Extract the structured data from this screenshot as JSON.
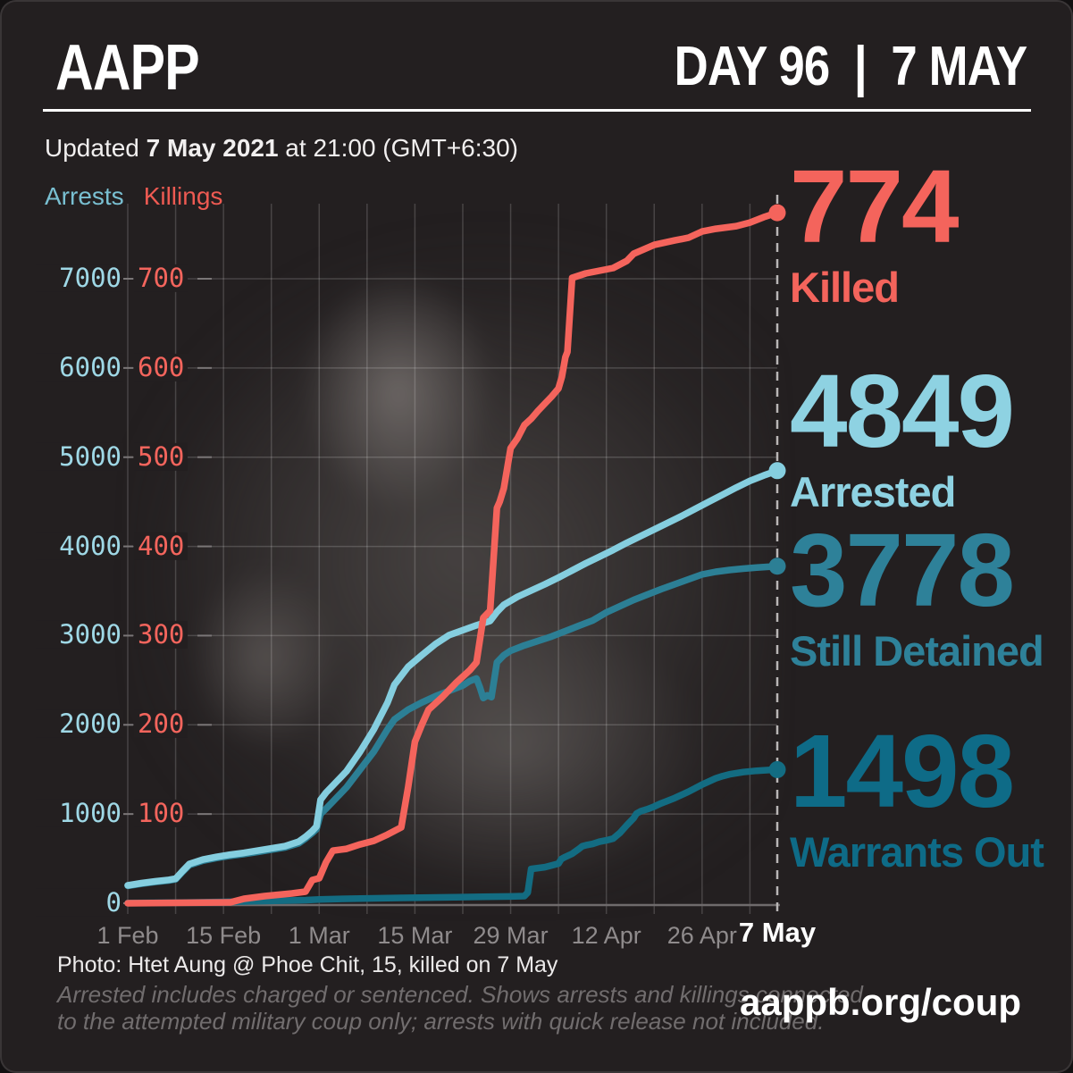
{
  "header": {
    "logo": "AAPP",
    "day_label": "DAY 96  |  7 MAY"
  },
  "updated": {
    "prefix": "Updated ",
    "date": "7 May 2021",
    "suffix": " at 21:00 (GMT+6:30)"
  },
  "stats": [
    {
      "value": "774",
      "label": "Killed",
      "color": "#f4645c"
    },
    {
      "value": "4849",
      "label": "Arrested",
      "color": "#8ed2e2"
    },
    {
      "value": "3778",
      "label": "Still Detained",
      "color": "#2e8199"
    },
    {
      "value": "1498",
      "label": "Warrants Out",
      "color": "#0e6b87"
    }
  ],
  "footer": {
    "photo_caption": "Photo: Htet Aung @ Phoe Chit, 15, killed on 7 May",
    "note_line1": "Arrested includes charged or sentenced. Shows arrests and killings connected",
    "note_line2": "to the attempted military coup only; arrests with quick release not included.",
    "website": "aappb.org/coup"
  },
  "chart_data": {
    "type": "line",
    "legend": [
      {
        "label": "Arrests",
        "color": "#79bfd1"
      },
      {
        "label": "Killings",
        "color": "#ee5a52"
      }
    ],
    "legend_position": "top-left",
    "grid": true,
    "x_axis": {
      "unit": "days since 1 Feb 2021",
      "range_days": [
        0,
        95
      ],
      "week_grid_step": 7,
      "labels": [
        {
          "day": 0,
          "text": "1 Feb"
        },
        {
          "day": 14,
          "text": "15 Feb"
        },
        {
          "day": 28,
          "text": "1 Mar"
        },
        {
          "day": 42,
          "text": "15 Mar"
        },
        {
          "day": 56,
          "text": "29 Mar"
        },
        {
          "day": 70,
          "text": "12 Apr"
        },
        {
          "day": 84,
          "text": "26 Apr"
        },
        {
          "day": 95,
          "text": "7 May",
          "highlight": true
        }
      ]
    },
    "y_axis_left": {
      "title": "Arrests",
      "min": 0,
      "max": 7000,
      "step": 1000,
      "color": "#9fd8e6"
    },
    "y_axis_right": {
      "title": "Killings",
      "min": 0,
      "max": 700,
      "step": 100,
      "color": "#f4655d"
    },
    "series": [
      {
        "name": "Warrants Out",
        "axis": "left",
        "color": "#136c82",
        "final_value": 1498,
        "points": [
          [
            0,
            2
          ],
          [
            8,
            8
          ],
          [
            14,
            15
          ],
          [
            20,
            25
          ],
          [
            26,
            35
          ],
          [
            28,
            42
          ],
          [
            32,
            50
          ],
          [
            36,
            55
          ],
          [
            40,
            60
          ],
          [
            44,
            64
          ],
          [
            48,
            68
          ],
          [
            52,
            72
          ],
          [
            56,
            76
          ],
          [
            58,
            80
          ],
          [
            58.5,
            120
          ],
          [
            59,
            385
          ],
          [
            60,
            395
          ],
          [
            61,
            405
          ],
          [
            62,
            425
          ],
          [
            63,
            445
          ],
          [
            63.4,
            495
          ],
          [
            64,
            520
          ],
          [
            65,
            555
          ],
          [
            66,
            610
          ],
          [
            66.5,
            640
          ],
          [
            67,
            650
          ],
          [
            68,
            665
          ],
          [
            69,
            690
          ],
          [
            70,
            705
          ],
          [
            71,
            725
          ],
          [
            72,
            790
          ],
          [
            73,
            875
          ],
          [
            74,
            955
          ],
          [
            74.4,
            1005
          ],
          [
            75,
            1030
          ],
          [
            76,
            1055
          ],
          [
            77,
            1085
          ],
          [
            78,
            1120
          ],
          [
            79,
            1150
          ],
          [
            80,
            1180
          ],
          [
            81,
            1215
          ],
          [
            82,
            1250
          ],
          [
            83,
            1290
          ],
          [
            84,
            1330
          ],
          [
            85,
            1365
          ],
          [
            86,
            1400
          ],
          [
            87,
            1425
          ],
          [
            88,
            1445
          ],
          [
            90,
            1470
          ],
          [
            92,
            1485
          ],
          [
            94,
            1495
          ],
          [
            95,
            1498
          ]
        ]
      },
      {
        "name": "Still Detained",
        "axis": "left",
        "color": "#2c7f95",
        "final_value": 3778,
        "points": [
          [
            0,
            195
          ],
          [
            2,
            218
          ],
          [
            4,
            238
          ],
          [
            6,
            255
          ],
          [
            7,
            268
          ],
          [
            8,
            350
          ],
          [
            9,
            428
          ],
          [
            11,
            478
          ],
          [
            13,
            508
          ],
          [
            15,
            532
          ],
          [
            17,
            552
          ],
          [
            19,
            576
          ],
          [
            21,
            600
          ],
          [
            23,
            625
          ],
          [
            25,
            672
          ],
          [
            26,
            726
          ],
          [
            27,
            788
          ],
          [
            27.6,
            830
          ],
          [
            28.2,
            1000
          ],
          [
            29,
            1060
          ],
          [
            30,
            1140
          ],
          [
            32,
            1300
          ],
          [
            34,
            1500
          ],
          [
            36,
            1700
          ],
          [
            38,
            1950
          ],
          [
            39,
            2060
          ],
          [
            41,
            2170
          ],
          [
            43,
            2250
          ],
          [
            45,
            2320
          ],
          [
            47,
            2380
          ],
          [
            49,
            2440
          ],
          [
            50,
            2490
          ],
          [
            51,
            2520
          ],
          [
            51.5,
            2420
          ],
          [
            52,
            2300
          ],
          [
            52.6,
            2330
          ],
          [
            53.2,
            2310
          ],
          [
            54,
            2700
          ],
          [
            55,
            2780
          ],
          [
            56,
            2830
          ],
          [
            58,
            2890
          ],
          [
            60,
            2940
          ],
          [
            62,
            2990
          ],
          [
            64,
            3050
          ],
          [
            66,
            3110
          ],
          [
            68,
            3170
          ],
          [
            70,
            3260
          ],
          [
            72,
            3330
          ],
          [
            74,
            3400
          ],
          [
            76,
            3460
          ],
          [
            78,
            3520
          ],
          [
            80,
            3575
          ],
          [
            82,
            3630
          ],
          [
            84,
            3685
          ],
          [
            86,
            3715
          ],
          [
            88,
            3735
          ],
          [
            90,
            3750
          ],
          [
            92,
            3762
          ],
          [
            94,
            3772
          ],
          [
            95,
            3778
          ]
        ]
      },
      {
        "name": "Arrests",
        "axis": "left",
        "color": "#85cedf",
        "final_value": 4849,
        "points": [
          [
            0,
            200
          ],
          [
            2,
            225
          ],
          [
            4,
            245
          ],
          [
            6,
            262
          ],
          [
            7,
            275
          ],
          [
            8,
            360
          ],
          [
            9,
            440
          ],
          [
            11,
            490
          ],
          [
            13,
            520
          ],
          [
            15,
            545
          ],
          [
            17,
            565
          ],
          [
            19,
            590
          ],
          [
            21,
            615
          ],
          [
            23,
            640
          ],
          [
            25,
            690
          ],
          [
            26,
            745
          ],
          [
            27,
            810
          ],
          [
            27.6,
            860
          ],
          [
            28.2,
            1160
          ],
          [
            29,
            1240
          ],
          [
            30,
            1320
          ],
          [
            32,
            1480
          ],
          [
            34,
            1700
          ],
          [
            36,
            1950
          ],
          [
            38,
            2250
          ],
          [
            39,
            2450
          ],
          [
            41,
            2650
          ],
          [
            43,
            2780
          ],
          [
            45,
            2905
          ],
          [
            47,
            3005
          ],
          [
            49,
            3060
          ],
          [
            51,
            3115
          ],
          [
            53,
            3165
          ],
          [
            54,
            3265
          ],
          [
            55,
            3345
          ],
          [
            57,
            3435
          ],
          [
            59,
            3505
          ],
          [
            61,
            3575
          ],
          [
            63,
            3650
          ],
          [
            65,
            3730
          ],
          [
            67,
            3810
          ],
          [
            69,
            3885
          ],
          [
            71,
            3960
          ],
          [
            73,
            4040
          ],
          [
            75,
            4115
          ],
          [
            77,
            4190
          ],
          [
            79,
            4265
          ],
          [
            81,
            4340
          ],
          [
            83,
            4420
          ],
          [
            85,
            4500
          ],
          [
            87,
            4580
          ],
          [
            89,
            4660
          ],
          [
            91,
            4735
          ],
          [
            93,
            4795
          ],
          [
            95,
            4849
          ]
        ]
      },
      {
        "name": "Killings",
        "axis": "right",
        "color": "#f4645c",
        "final_value": 774,
        "points": [
          [
            0,
            0
          ],
          [
            15,
            1
          ],
          [
            17,
            5
          ],
          [
            20,
            8
          ],
          [
            24,
            11
          ],
          [
            26,
            13
          ],
          [
            27,
            26
          ],
          [
            28,
            28
          ],
          [
            29,
            46
          ],
          [
            30,
            59
          ],
          [
            32,
            61
          ],
          [
            34,
            66
          ],
          [
            36,
            70
          ],
          [
            38,
            77
          ],
          [
            40,
            85
          ],
          [
            41,
            130
          ],
          [
            42,
            181
          ],
          [
            43,
            200
          ],
          [
            44,
            217
          ],
          [
            46,
            231
          ],
          [
            48,
            247
          ],
          [
            50,
            261
          ],
          [
            51,
            270
          ],
          [
            52,
            320
          ],
          [
            53,
            328
          ],
          [
            54,
            443
          ],
          [
            54.4,
            450
          ],
          [
            55,
            465
          ],
          [
            56,
            510
          ],
          [
            57,
            521
          ],
          [
            58,
            536
          ],
          [
            59,
            543
          ],
          [
            60,
            552
          ],
          [
            61,
            560
          ],
          [
            62,
            568
          ],
          [
            63,
            577
          ],
          [
            63.5,
            590
          ],
          [
            64,
            612
          ],
          [
            64.3,
            618
          ],
          [
            65,
            701
          ],
          [
            67,
            706
          ],
          [
            69,
            709
          ],
          [
            71,
            712
          ],
          [
            73,
            720
          ],
          [
            74,
            728
          ],
          [
            77,
            738
          ],
          [
            80,
            743
          ],
          [
            82,
            746
          ],
          [
            84,
            753
          ],
          [
            86,
            756
          ],
          [
            89,
            759
          ],
          [
            91,
            763
          ],
          [
            93,
            769
          ],
          [
            95,
            774
          ]
        ]
      }
    ]
  }
}
